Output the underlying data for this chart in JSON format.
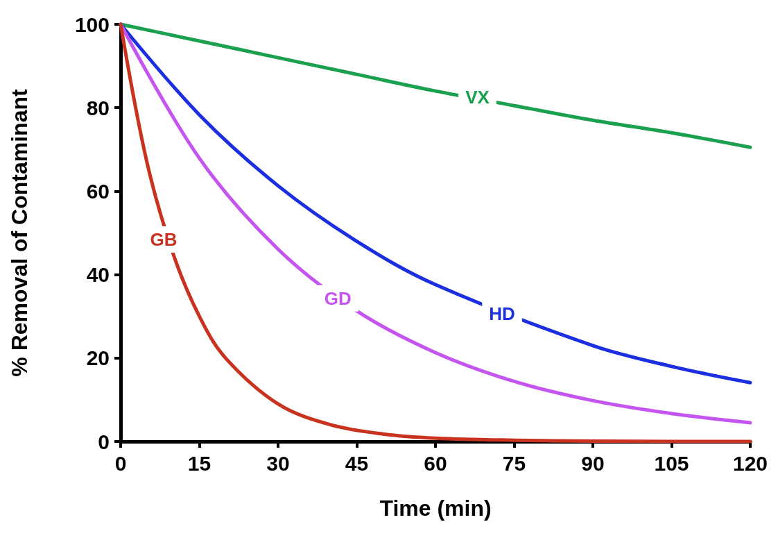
{
  "chart_data": {
    "type": "line",
    "xlabel": "Time (min)",
    "ylabel": "% Removal of Contaminant",
    "xlim": [
      0,
      120
    ],
    "xticks": [
      0,
      15,
      30,
      45,
      60,
      75,
      90,
      105,
      120
    ],
    "ylim": [
      0,
      100
    ],
    "yticks": [
      0,
      20,
      40,
      60,
      80,
      100
    ],
    "grid": false,
    "marker": "none",
    "line_style": "solid",
    "series": [
      {
        "color": "#1aa04e",
        "x": [
          0,
          15,
          30,
          45,
          60,
          75,
          90,
          105,
          120
        ],
        "values": [
          100,
          96,
          92,
          88,
          84,
          80.5,
          77,
          74,
          70.5
        ]
      },
      {
        "color": "#1c2fe0",
        "x": [
          0,
          15,
          30,
          45,
          60,
          90,
          105,
          120
        ],
        "values": [
          100,
          78.3,
          61.3,
          48,
          37.6,
          23,
          18,
          14.1
        ]
      },
      {
        "color": "#c455f0",
        "x": [
          0,
          15,
          30,
          45,
          60,
          75,
          90,
          105,
          120
        ],
        "values": [
          100,
          67.9,
          46.1,
          31.3,
          21.3,
          14.4,
          9.8,
          6.7,
          4.5
        ]
      },
      {
        "color": "#c8321e",
        "x": [
          0,
          5,
          10,
          15,
          20,
          30,
          40,
          50,
          60,
          75,
          90,
          105,
          120
        ],
        "values": [
          100,
          67,
          45,
          30,
          20,
          9,
          4,
          1.8,
          0.8,
          0.3,
          0.1,
          0,
          0
        ]
      }
    ],
    "annotations": [
      {
        "text": "VX",
        "x": 68,
        "y": 82.5
      },
      {
        "text": "HD",
        "x": 72.7,
        "y": 30.6
      },
      {
        "text": "GD",
        "x": 41.4,
        "y": 34.3
      },
      {
        "text": "GB",
        "x": 8.2,
        "y": 48.4
      }
    ]
  }
}
